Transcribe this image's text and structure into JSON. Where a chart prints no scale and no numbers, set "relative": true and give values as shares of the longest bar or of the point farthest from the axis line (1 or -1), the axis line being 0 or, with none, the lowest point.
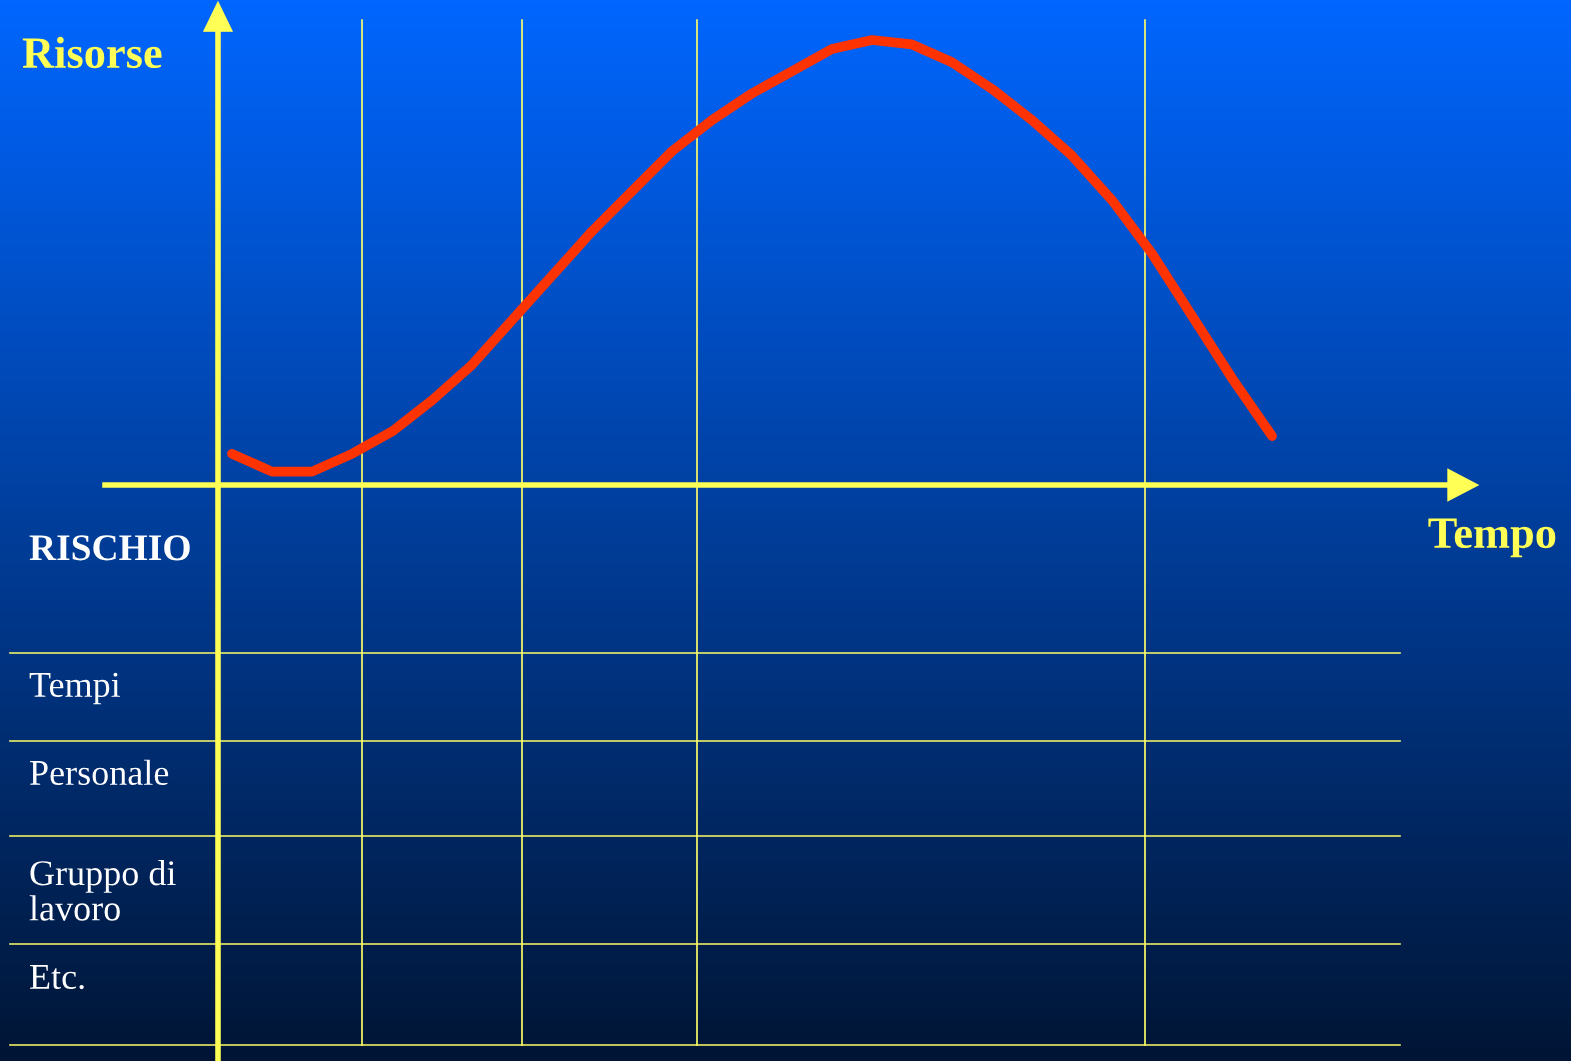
{
  "chart_data": {
    "type": "line",
    "relative": true,
    "xlabel": "Tempo",
    "ylabel": "Risorse",
    "categories": [
      null,
      null,
      null,
      null,
      null,
      null,
      null,
      null,
      null,
      null,
      null,
      null,
      null,
      null,
      null,
      null,
      null,
      null,
      null,
      null,
      null,
      null,
      null,
      null,
      null,
      null,
      null
    ],
    "series": [
      {
        "color": "#ff3300",
        "values": [
          0.07,
          0.03,
          0.03,
          0.07,
          0.12,
          0.19,
          0.27,
          0.37,
          0.47,
          0.57,
          0.66,
          0.75,
          0.82,
          0.88,
          0.93,
          0.98,
          1.0,
          0.99,
          0.95,
          0.89,
          0.82,
          0.74,
          0.64,
          0.52,
          0.38,
          0.24,
          0.11
        ]
      }
    ],
    "annotations": [
      "RISCHIO",
      "Tempi",
      "Personale",
      "Gruppo di\nlavoro",
      "Etc."
    ]
  }
}
